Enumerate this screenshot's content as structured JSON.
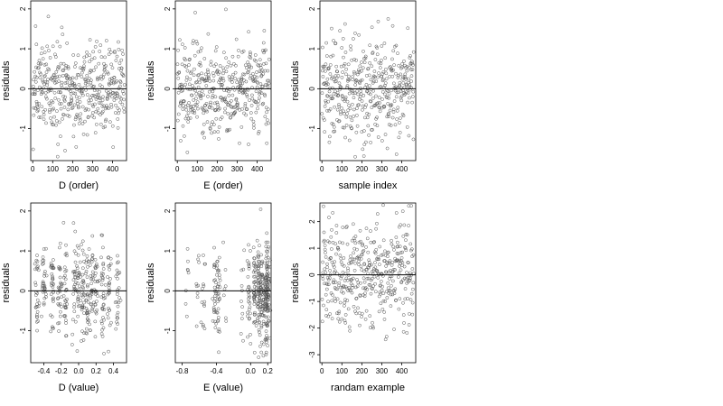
{
  "chart_data": [
    {
      "type": "scatter",
      "xlabel": "D (order)",
      "ylabel": "residuals",
      "xlim": [
        -10,
        470
      ],
      "ylim": [
        -1.8,
        2.2
      ],
      "xticks": [
        0,
        100,
        200,
        300,
        400
      ],
      "xtick_labels": [
        "0",
        "100",
        "200",
        "300",
        "400"
      ],
      "yticks": [
        -1,
        0,
        1,
        2
      ],
      "ytick_labels": [
        "-1",
        "0",
        "1",
        "2"
      ],
      "hline": 0,
      "x_distribution": "index",
      "y_sd": 0.6,
      "n_points": 420
    },
    {
      "type": "scatter",
      "xlabel": "E (order)",
      "ylabel": "residuals",
      "xlim": [
        -10,
        470
      ],
      "ylim": [
        -1.8,
        2.2
      ],
      "xticks": [
        0,
        100,
        200,
        300,
        400
      ],
      "xtick_labels": [
        "0",
        "100",
        "200",
        "300",
        "400"
      ],
      "yticks": [
        -1,
        0,
        1,
        2
      ],
      "ytick_labels": [
        "-1",
        "0",
        "1",
        "2"
      ],
      "hline": 0,
      "x_distribution": "index",
      "y_sd": 0.6,
      "n_points": 420
    },
    {
      "type": "scatter",
      "xlabel": "sample index",
      "ylabel": "residuals",
      "xlim": [
        -10,
        470
      ],
      "ylim": [
        -1.8,
        2.2
      ],
      "xticks": [
        0,
        100,
        200,
        300,
        400
      ],
      "xtick_labels": [
        "0",
        "100",
        "200",
        "300",
        "400"
      ],
      "yticks": [
        -1,
        0,
        1,
        2
      ],
      "ytick_labels": [
        "-1",
        "0",
        "1",
        "2"
      ],
      "hline": 0,
      "x_distribution": "index",
      "y_sd": 0.6,
      "n_points": 420
    },
    {
      "type": "scatter",
      "xlabel": "D (value)",
      "ylabel": "residuals",
      "xlim": [
        -0.55,
        0.55
      ],
      "ylim": [
        -1.8,
        2.2
      ],
      "xticks": [
        -0.4,
        -0.2,
        0,
        0.2,
        0.4
      ],
      "xtick_labels": [
        "-0.4",
        "-0.2",
        "0.0",
        "0.2",
        "0.4"
      ],
      "yticks": [
        -1,
        0,
        1,
        2
      ],
      "ytick_labels": [
        "-1",
        "0",
        "1",
        "2"
      ],
      "hline": 0,
      "x_distribution": "clustered",
      "x_clusters": [
        -0.48,
        -0.4,
        -0.3,
        -0.22,
        -0.15,
        -0.05,
        0.0,
        0.05,
        0.1,
        0.15,
        0.2,
        0.28,
        0.35,
        0.45
      ],
      "y_sd": 0.6,
      "n_points": 420
    },
    {
      "type": "scatter",
      "xlabel": "E (value)",
      "ylabel": "residuals",
      "xlim": [
        -0.88,
        0.24
      ],
      "ylim": [
        -1.8,
        2.2
      ],
      "xticks": [
        -0.8,
        -0.4,
        0.0,
        0.2
      ],
      "xtick_labels": [
        "-0.8",
        "-0.4",
        "0.0",
        "0.2"
      ],
      "yticks": [
        -1,
        0,
        1,
        2
      ],
      "ytick_labels": [
        "-1",
        "0",
        "1",
        "2"
      ],
      "hline": 0,
      "x_distribution": "clustered",
      "x_clusters": [
        -0.75,
        -0.62,
        -0.55,
        -0.42,
        -0.38,
        -0.3,
        -0.1,
        -0.02,
        0.05,
        0.1,
        0.14,
        0.18,
        0.2
      ],
      "x_cluster_weights": [
        1,
        1,
        2,
        2,
        3,
        1,
        1,
        3,
        4,
        6,
        5,
        6,
        8
      ],
      "y_sd": 0.6,
      "n_points": 420
    },
    {
      "type": "scatter",
      "xlabel": "randam example",
      "ylabel": "residuals",
      "xlim": [
        -10,
        470
      ],
      "ylim": [
        -3.3,
        2.7
      ],
      "xticks": [
        0,
        100,
        200,
        300,
        400
      ],
      "xtick_labels": [
        "0",
        "100",
        "200",
        "300",
        "400"
      ],
      "yticks": [
        -3,
        -2,
        -1,
        0,
        1,
        2
      ],
      "ytick_labels": [
        "-3",
        "-2",
        "-1",
        "0",
        "1",
        "2"
      ],
      "hline": 0,
      "x_distribution": "index",
      "y_sd": 1.0,
      "n_points": 420
    }
  ],
  "style": {
    "point_color": "#555555",
    "axis_color": "#000000",
    "hline_color": "#000000"
  }
}
